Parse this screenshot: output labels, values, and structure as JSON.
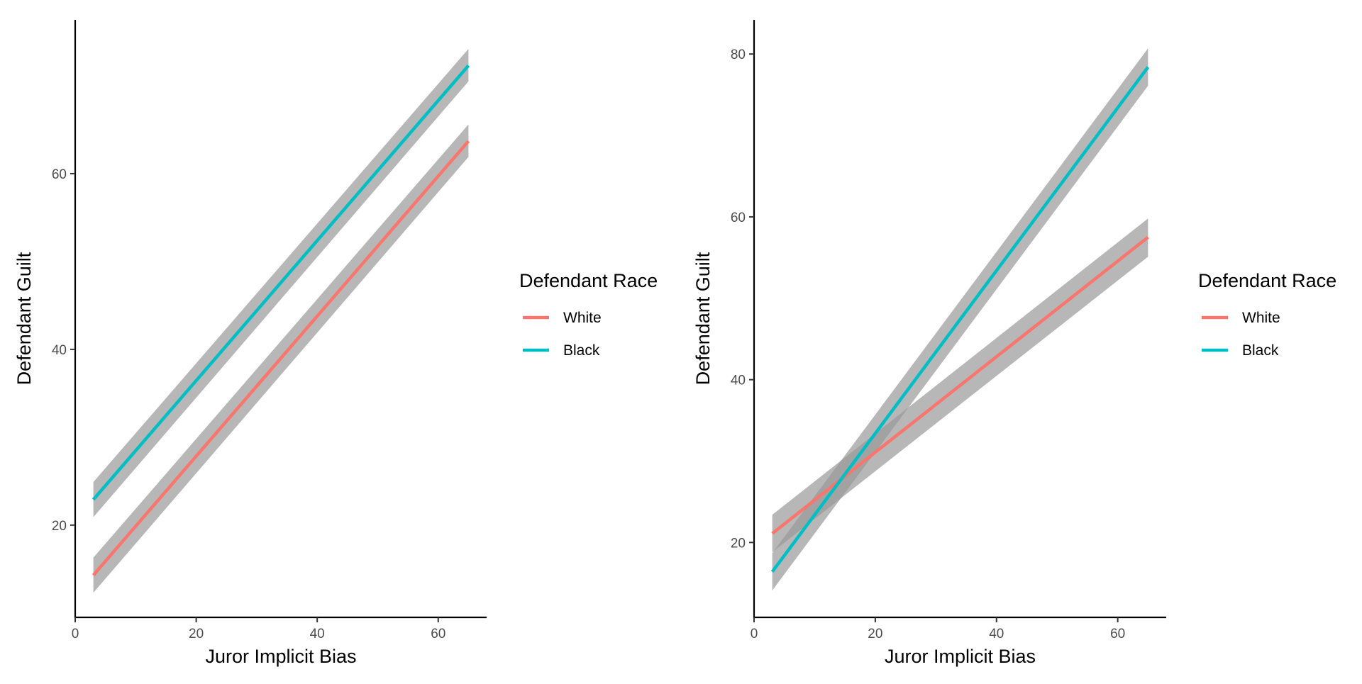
{
  "chart_data": [
    {
      "type": "line",
      "title": "",
      "xlabel": "Juror Implicit Bias",
      "ylabel": "Defendant Guilt",
      "xlim": [
        0,
        68
      ],
      "ylim": [
        9.5,
        77.5
      ],
      "x_ticks": [
        0,
        20,
        40,
        60
      ],
      "y_ticks": [
        20,
        40,
        60
      ],
      "grid": false,
      "legend": {
        "title": "Defendant Race",
        "position": "right",
        "entries": [
          "White",
          "Black"
        ]
      },
      "series": [
        {
          "name": "White",
          "color": "#F8766D",
          "x": [
            3,
            65
          ],
          "y": [
            14.3,
            63.7
          ],
          "ci_lower": [
            12.3,
            61.9
          ],
          "ci_upper": [
            16.3,
            65.6
          ]
        },
        {
          "name": "Black",
          "color": "#00BFC4",
          "x": [
            3,
            65
          ],
          "y": [
            22.9,
            72.3
          ],
          "ci_lower": [
            20.9,
            70.5
          ],
          "ci_upper": [
            24.9,
            74.2
          ]
        }
      ]
    },
    {
      "type": "line",
      "title": "",
      "xlabel": "Juror Implicit Bias",
      "ylabel": "Defendant Guilt",
      "xlim": [
        0,
        68
      ],
      "ylim": [
        10.8,
        84.2
      ],
      "x_ticks": [
        0,
        20,
        40,
        60
      ],
      "y_ticks": [
        20,
        40,
        60,
        80
      ],
      "grid": false,
      "legend": {
        "title": "Defendant Race",
        "position": "right",
        "entries": [
          "White",
          "Black"
        ]
      },
      "series": [
        {
          "name": "White",
          "color": "#F8766D",
          "x": [
            3,
            65
          ],
          "y": [
            21.1,
            57.5
          ],
          "ci_lower": [
            18.8,
            55.1
          ],
          "ci_upper": [
            23.4,
            59.8
          ]
        },
        {
          "name": "Black",
          "color": "#00BFC4",
          "x": [
            3,
            65
          ],
          "y": [
            16.4,
            78.4
          ],
          "ci_lower": [
            14.1,
            76.1
          ],
          "ci_upper": [
            18.7,
            80.7
          ]
        }
      ]
    }
  ]
}
